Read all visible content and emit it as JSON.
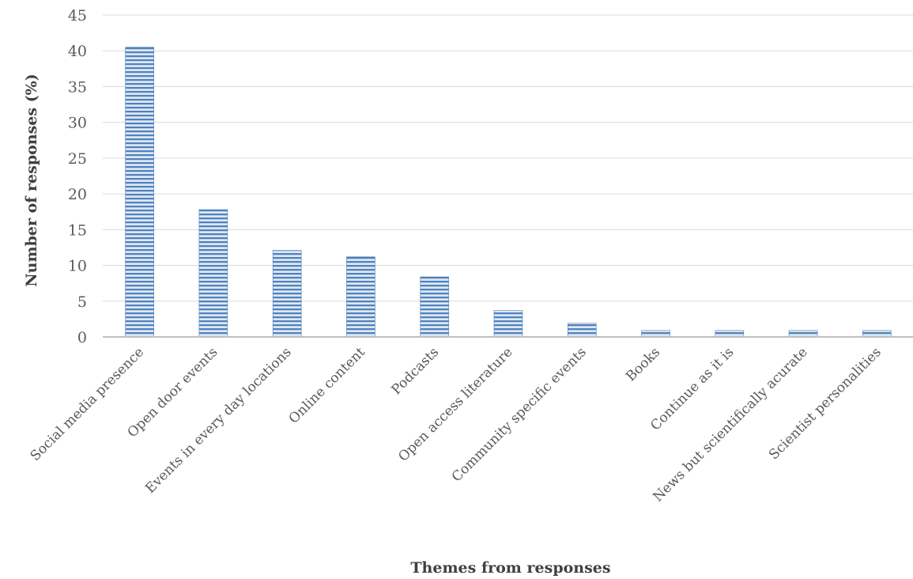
{
  "chart_data": {
    "type": "bar",
    "title": "",
    "xlabel": "Themes from responses",
    "ylabel": "Number of responses (%)",
    "ylim": [
      0,
      45
    ],
    "yticks": [
      "0",
      "5",
      "10",
      "15",
      "20",
      "25",
      "30",
      "35",
      "40",
      "45"
    ],
    "grid": true,
    "legend": "none",
    "bar_color": "#4f81bd",
    "bar_stripe_color": "#dce6f2",
    "categories": [
      "Social media presence",
      "Open door events",
      "Events in every day locations",
      "Online content",
      "Podcasts",
      "Open access literature",
      "Community specific events",
      "Books",
      "Continue as it is",
      "News but scientifically acurate",
      "Scientist personalities"
    ],
    "values": [
      40.5,
      17.8,
      12.1,
      11.2,
      8.4,
      3.7,
      1.9,
      0.9,
      0.9,
      0.9,
      0.9
    ]
  }
}
